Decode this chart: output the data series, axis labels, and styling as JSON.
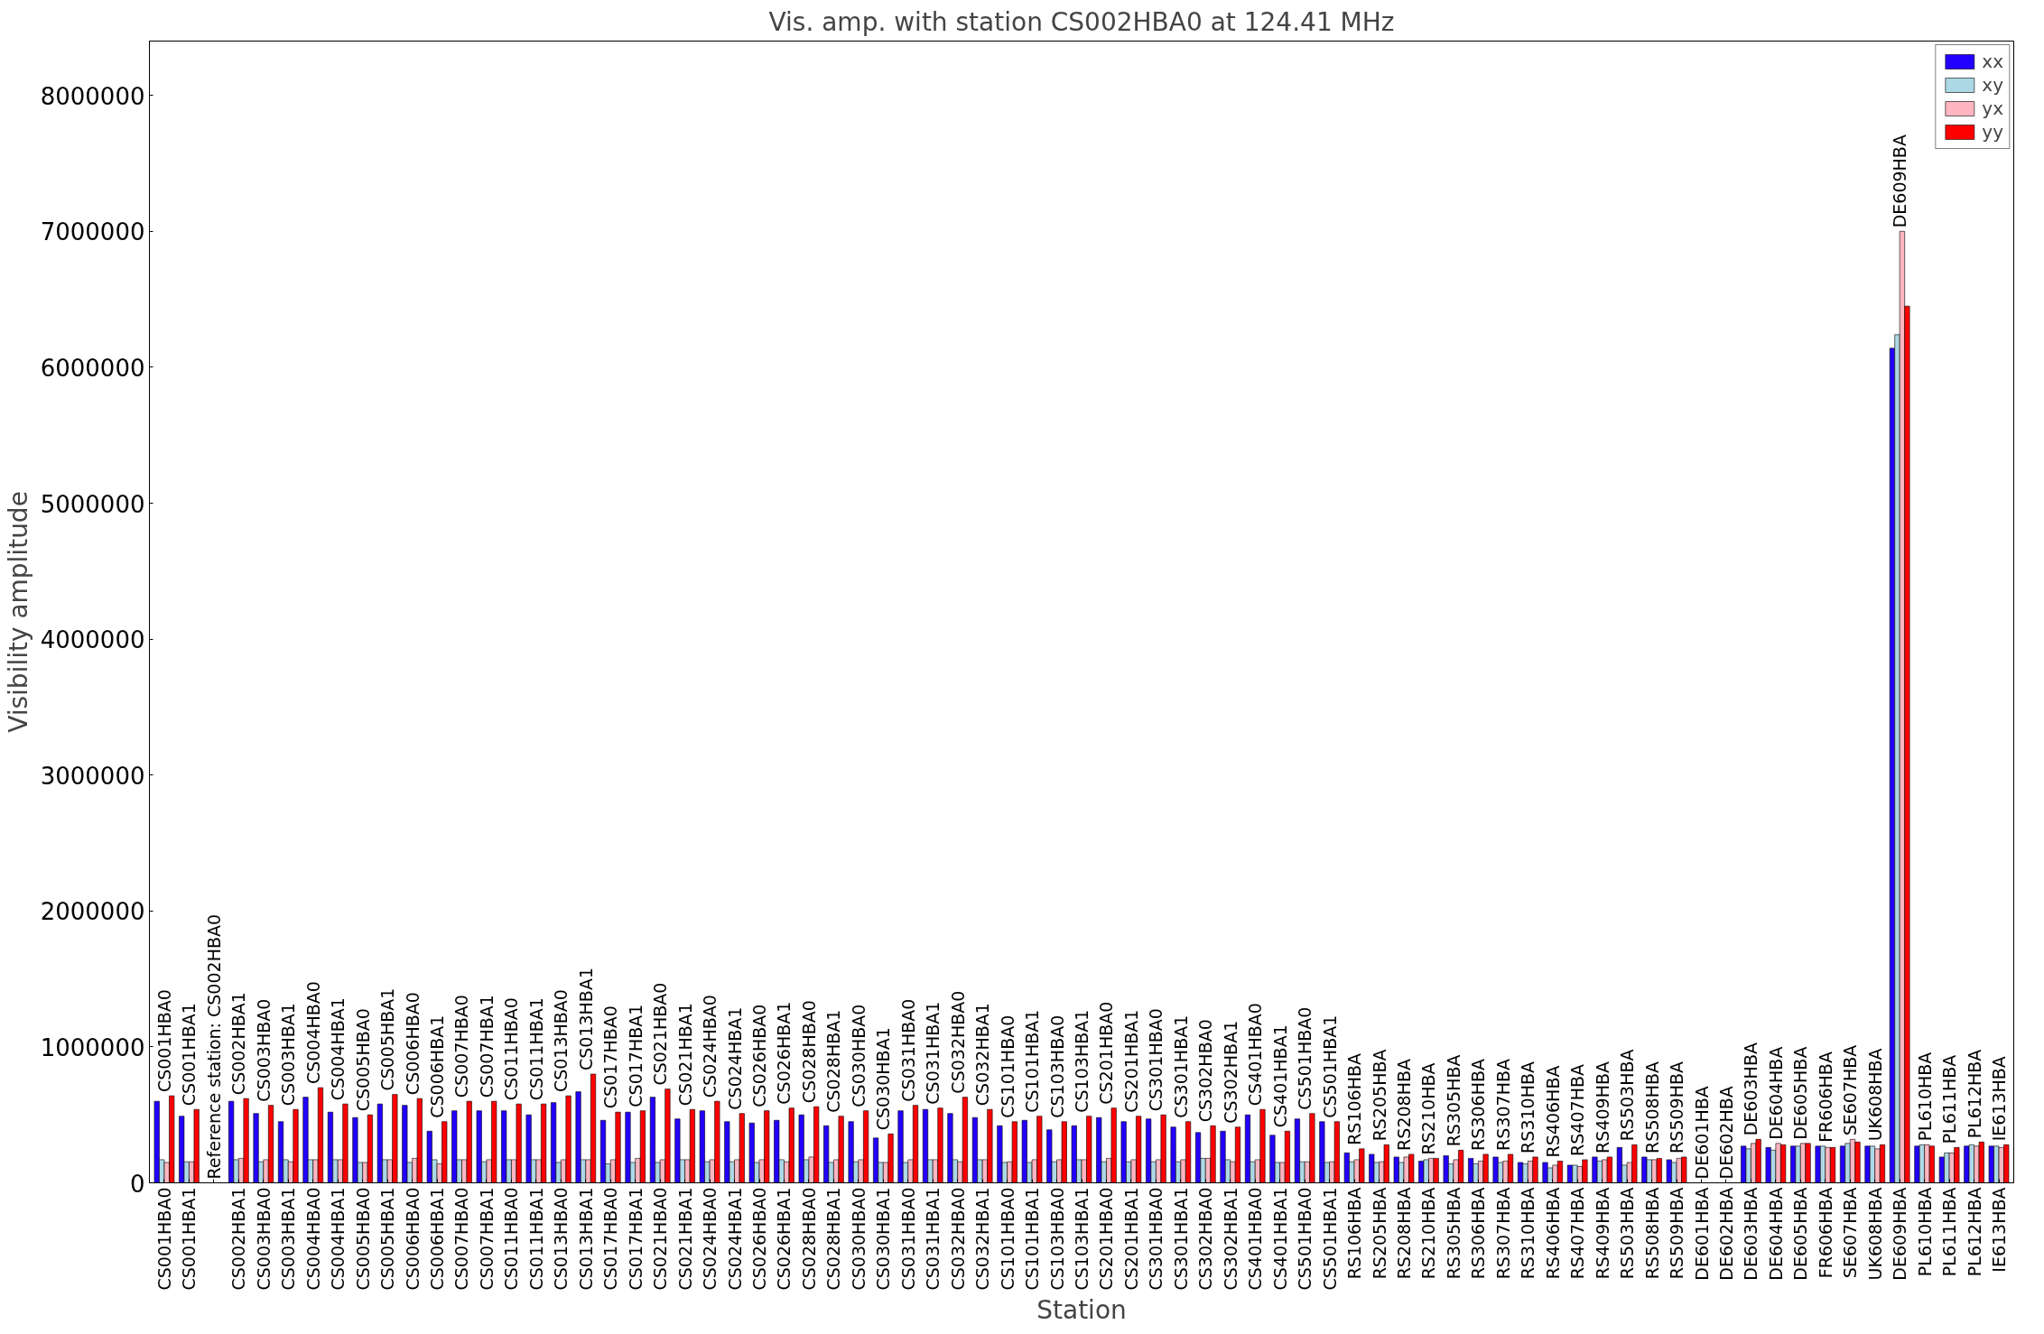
{
  "chart_data": {
    "type": "bar",
    "title": "Vis. amp. with station CS002HBA0 at 124.41 MHz",
    "xlabel": "Station",
    "ylabel": "Visibility amplitude",
    "categories": [
      "CS001HBA0",
      "CS001HBA1",
      null,
      "CS002HBA1",
      "CS003HBA0",
      "CS003HBA1",
      "CS004HBA0",
      "CS004HBA1",
      "CS005HBA0",
      "CS005HBA1",
      "CS006HBA0",
      "CS006HBA1",
      "CS007HBA0",
      "CS007HBA1",
      "CS011HBA0",
      "CS011HBA1",
      "CS013HBA0",
      "CS013HBA1",
      "CS017HBA0",
      "CS017HBA1",
      "CS021HBA0",
      "CS021HBA1",
      "CS024HBA0",
      "CS024HBA1",
      "CS026HBA0",
      "CS026HBA1",
      "CS028HBA0",
      "CS028HBA1",
      "CS030HBA0",
      "CS030HBA1",
      "CS031HBA0",
      "CS031HBA1",
      "CS032HBA0",
      "CS032HBA1",
      "CS101HBA0",
      "CS101HBA1",
      "CS103HBA0",
      "CS103HBA1",
      "CS201HBA0",
      "CS201HBA1",
      "CS301HBA0",
      "CS301HBA1",
      "CS302HBA0",
      "CS302HBA1",
      "CS401HBA0",
      "CS401HBA1",
      "CS501HBA0",
      "CS501HBA1",
      "RS106HBA",
      "RS205HBA",
      "RS208HBA",
      "RS210HBA",
      "RS305HBA",
      "RS306HBA",
      "RS307HBA",
      "RS310HBA",
      "RS406HBA",
      "RS407HBA",
      "RS409HBA",
      "RS503HBA",
      "RS508HBA",
      "RS509HBA",
      "DE601HBA",
      "DE602HBA",
      "DE603HBA",
      "DE604HBA",
      "DE605HBA",
      "FR606HBA",
      "SE607HBA",
      "UK608HBA",
      "DE609HBA",
      "PL610HBA",
      "PL611HBA",
      "PL612HBA",
      "IE613HBA"
    ],
    "series": [
      {
        "name": "xx",
        "color": "#2200ff",
        "values": [
          600000,
          490000,
          null,
          600000,
          510000,
          450000,
          630000,
          520000,
          480000,
          580000,
          570000,
          380000,
          530000,
          530000,
          530000,
          500000,
          590000,
          670000,
          460000,
          520000,
          630000,
          470000,
          530000,
          450000,
          440000,
          460000,
          500000,
          420000,
          450000,
          330000,
          530000,
          540000,
          510000,
          480000,
          420000,
          460000,
          390000,
          420000,
          480000,
          450000,
          470000,
          410000,
          370000,
          380000,
          500000,
          350000,
          470000,
          450000,
          220000,
          210000,
          190000,
          160000,
          200000,
          180000,
          190000,
          150000,
          150000,
          130000,
          190000,
          260000,
          190000,
          170000,
          null,
          null,
          270000,
          260000,
          270000,
          270000,
          270000,
          270000,
          6140000,
          270000,
          190000,
          270000,
          270000
        ]
      },
      {
        "name": "xy",
        "color": "#add8e6",
        "values": [
          170000,
          155000,
          null,
          170000,
          155000,
          170000,
          170000,
          170000,
          150000,
          170000,
          150000,
          170000,
          170000,
          155000,
          170000,
          170000,
          150000,
          170000,
          140000,
          150000,
          150000,
          170000,
          155000,
          155000,
          150000,
          170000,
          170000,
          150000,
          155000,
          150000,
          150000,
          170000,
          170000,
          170000,
          150000,
          150000,
          155000,
          170000,
          155000,
          155000,
          155000,
          155000,
          180000,
          170000,
          155000,
          150000,
          155000,
          150000,
          155000,
          150000,
          150000,
          170000,
          140000,
          140000,
          150000,
          140000,
          110000,
          130000,
          160000,
          130000,
          170000,
          150000,
          null,
          null,
          250000,
          240000,
          270000,
          270000,
          290000,
          270000,
          6240000,
          280000,
          220000,
          280000,
          270000
        ]
      },
      {
        "name": "yx",
        "color": "#ffb6c1",
        "values": [
          150000,
          155000,
          null,
          180000,
          170000,
          155000,
          170000,
          170000,
          150000,
          170000,
          180000,
          140000,
          170000,
          170000,
          170000,
          170000,
          170000,
          170000,
          170000,
          180000,
          170000,
          170000,
          170000,
          170000,
          170000,
          155000,
          190000,
          170000,
          170000,
          150000,
          170000,
          170000,
          155000,
          170000,
          155000,
          170000,
          170000,
          170000,
          180000,
          170000,
          170000,
          170000,
          180000,
          155000,
          170000,
          150000,
          155000,
          155000,
          170000,
          155000,
          190000,
          180000,
          170000,
          160000,
          160000,
          160000,
          130000,
          120000,
          170000,
          150000,
          170000,
          180000,
          null,
          null,
          290000,
          290000,
          290000,
          260000,
          320000,
          250000,
          7000000,
          280000,
          220000,
          270000,
          260000
        ]
      },
      {
        "name": "yy",
        "color": "#ff0000",
        "values": [
          640000,
          540000,
          null,
          620000,
          570000,
          540000,
          700000,
          580000,
          500000,
          650000,
          620000,
          450000,
          600000,
          600000,
          580000,
          580000,
          640000,
          800000,
          520000,
          530000,
          690000,
          540000,
          600000,
          510000,
          530000,
          550000,
          560000,
          490000,
          530000,
          360000,
          570000,
          550000,
          630000,
          540000,
          450000,
          490000,
          450000,
          490000,
          550000,
          490000,
          500000,
          450000,
          420000,
          410000,
          540000,
          380000,
          510000,
          450000,
          250000,
          280000,
          210000,
          180000,
          240000,
          210000,
          210000,
          190000,
          160000,
          170000,
          190000,
          280000,
          180000,
          190000,
          null,
          null,
          320000,
          280000,
          290000,
          260000,
          300000,
          280000,
          6450000,
          270000,
          260000,
          300000,
          280000
        ]
      }
    ],
    "ylim": [
      0,
      8400000
    ],
    "yticks": [
      0,
      1000000,
      2000000,
      3000000,
      4000000,
      5000000,
      6000000,
      7000000,
      8000000
    ],
    "legend": "top right",
    "annotations": [
      "Reference station: CS002HBA0"
    ]
  }
}
